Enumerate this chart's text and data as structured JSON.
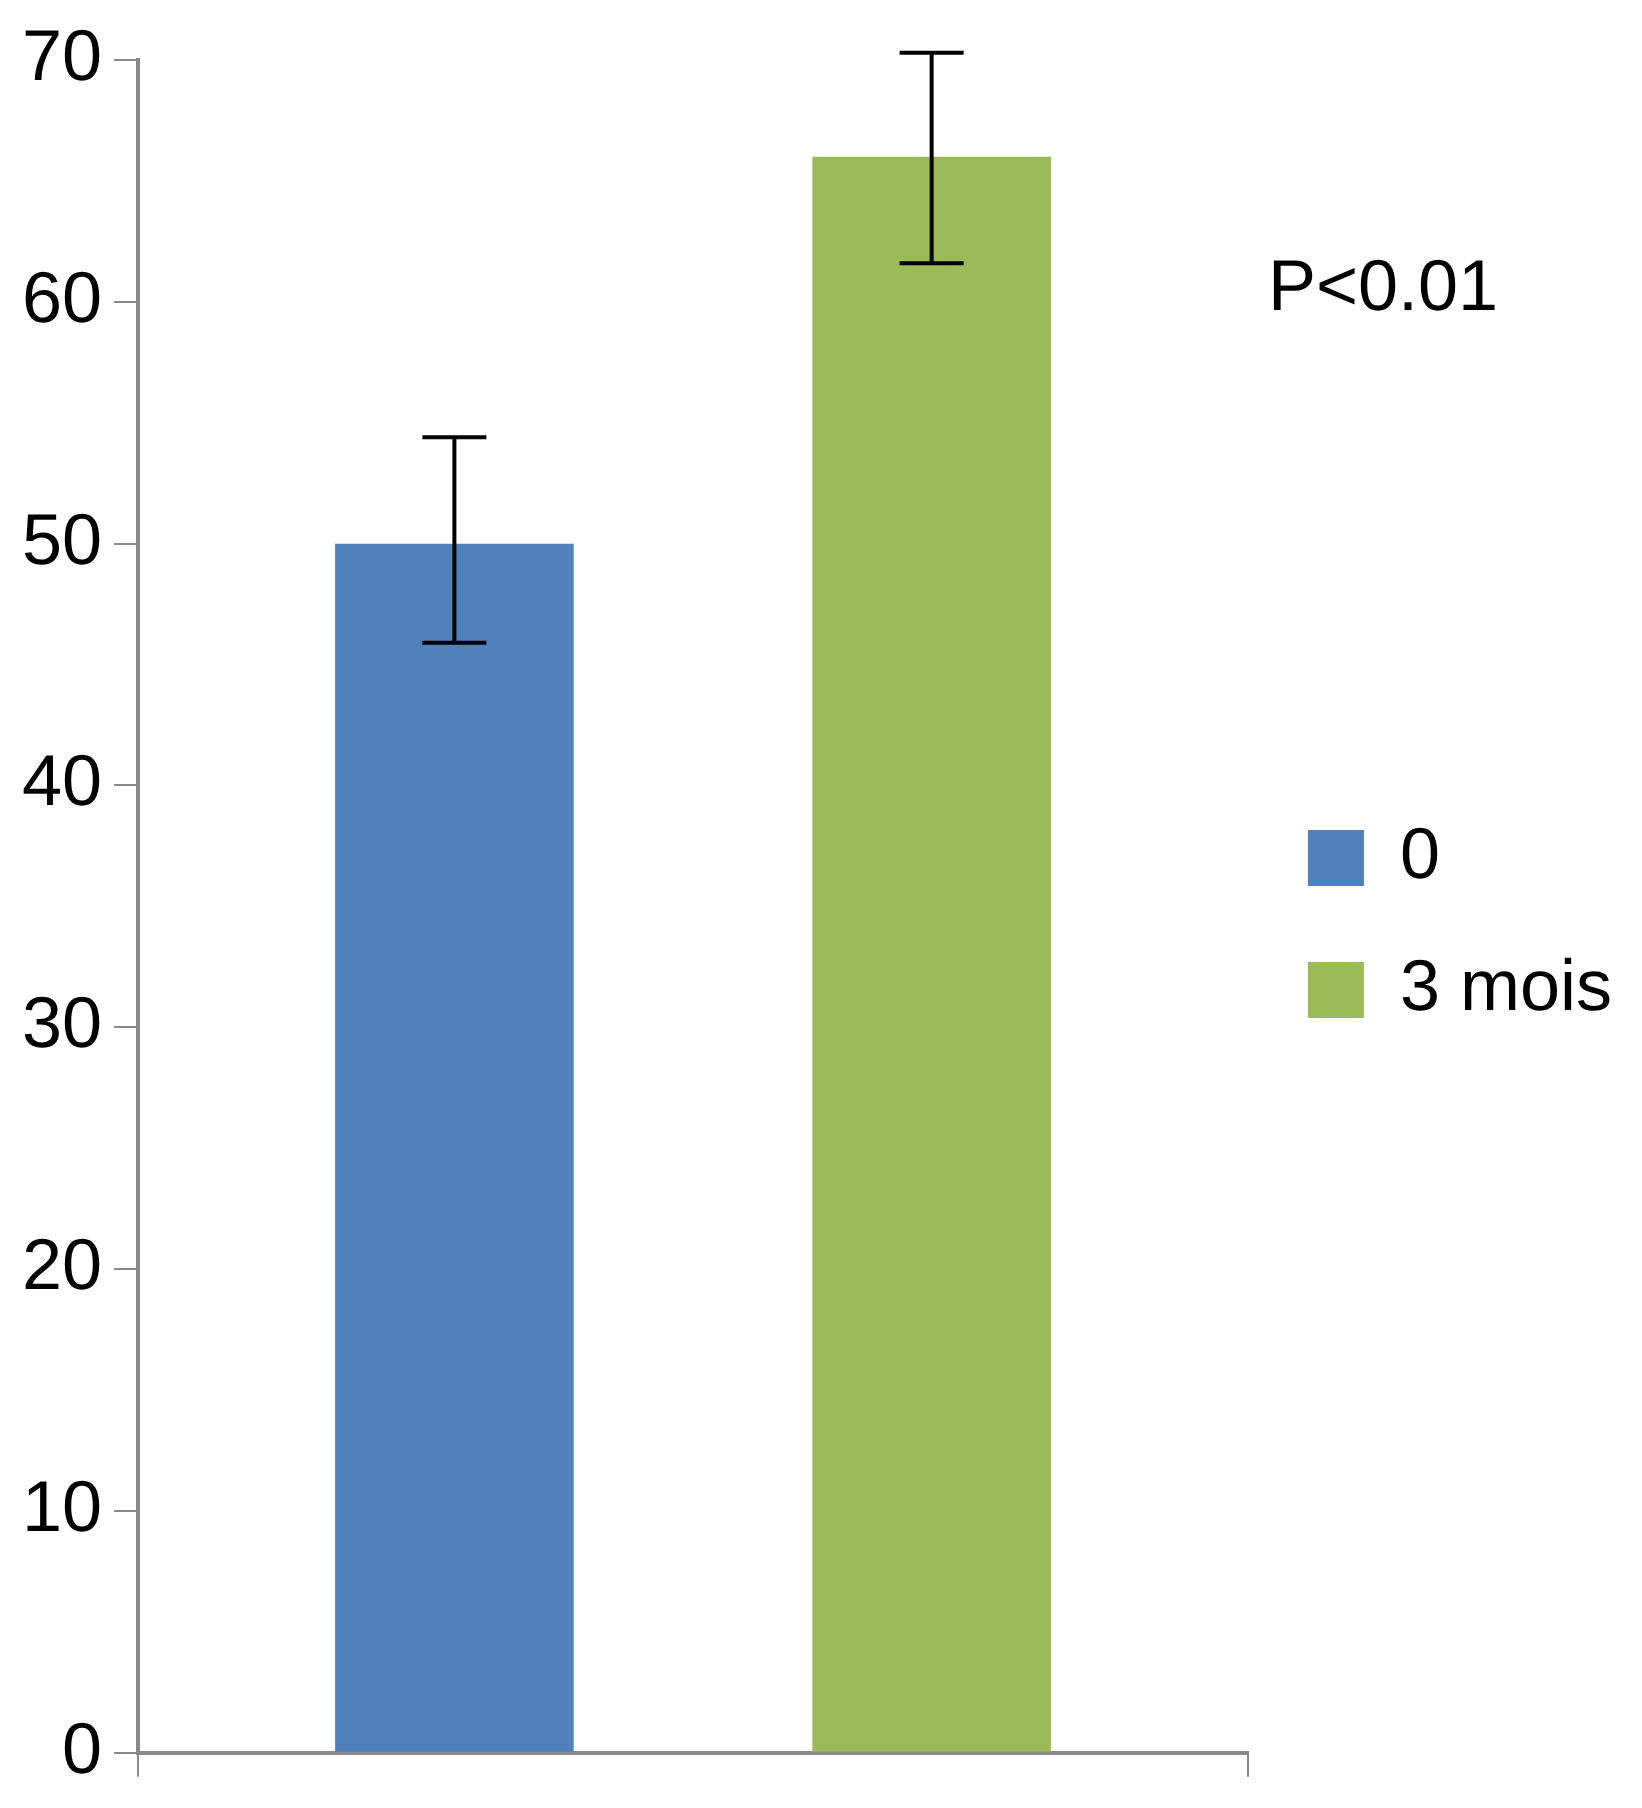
{
  "chart_data": {
    "type": "bar",
    "categories": [
      null
    ],
    "series": [
      {
        "name": "0",
        "color": "#4f81bd",
        "values": [
          50
        ],
        "errors": [
          [
            45.9,
            54.4
          ]
        ]
      },
      {
        "name": "3 mois",
        "color": "#9bbb59",
        "values": [
          66
        ],
        "errors": [
          [
            61.6,
            70.3
          ]
        ]
      }
    ],
    "ylim": [
      0,
      70
    ],
    "yticks": [
      0,
      10,
      20,
      30,
      40,
      50,
      60,
      70
    ],
    "grid": false,
    "legend": "right",
    "annotations": [
      "P<0.01"
    ]
  }
}
